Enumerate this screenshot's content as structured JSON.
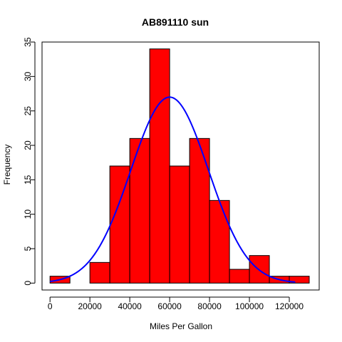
{
  "chart_data": {
    "type": "bar",
    "subtype": "histogram",
    "title": "AB891110 sun",
    "xlabel": "Miles Per Gallon",
    "ylabel": "Frequency",
    "bin_edges": [
      0,
      10000,
      20000,
      30000,
      40000,
      50000,
      60000,
      70000,
      80000,
      90000,
      100000,
      110000,
      120000,
      130000
    ],
    "counts": [
      1,
      0,
      3,
      17,
      21,
      34,
      17,
      21,
      12,
      2,
      4,
      1,
      1
    ],
    "xlim": [
      -4000,
      135000
    ],
    "ylim": [
      -1,
      35
    ],
    "x_ticks": [
      0,
      20000,
      40000,
      60000,
      80000,
      100000,
      120000
    ],
    "y_ticks": [
      0,
      5,
      10,
      15,
      20,
      25,
      30,
      35
    ],
    "bar_color": "#ff0000",
    "bar_edge_color": "#000000",
    "grid": false,
    "curve": {
      "type": "normal-density",
      "color": "#0000ff",
      "x_range": [
        0,
        123000
      ],
      "peak_x": 60000,
      "peak_y": 27,
      "sd": 19500
    }
  }
}
